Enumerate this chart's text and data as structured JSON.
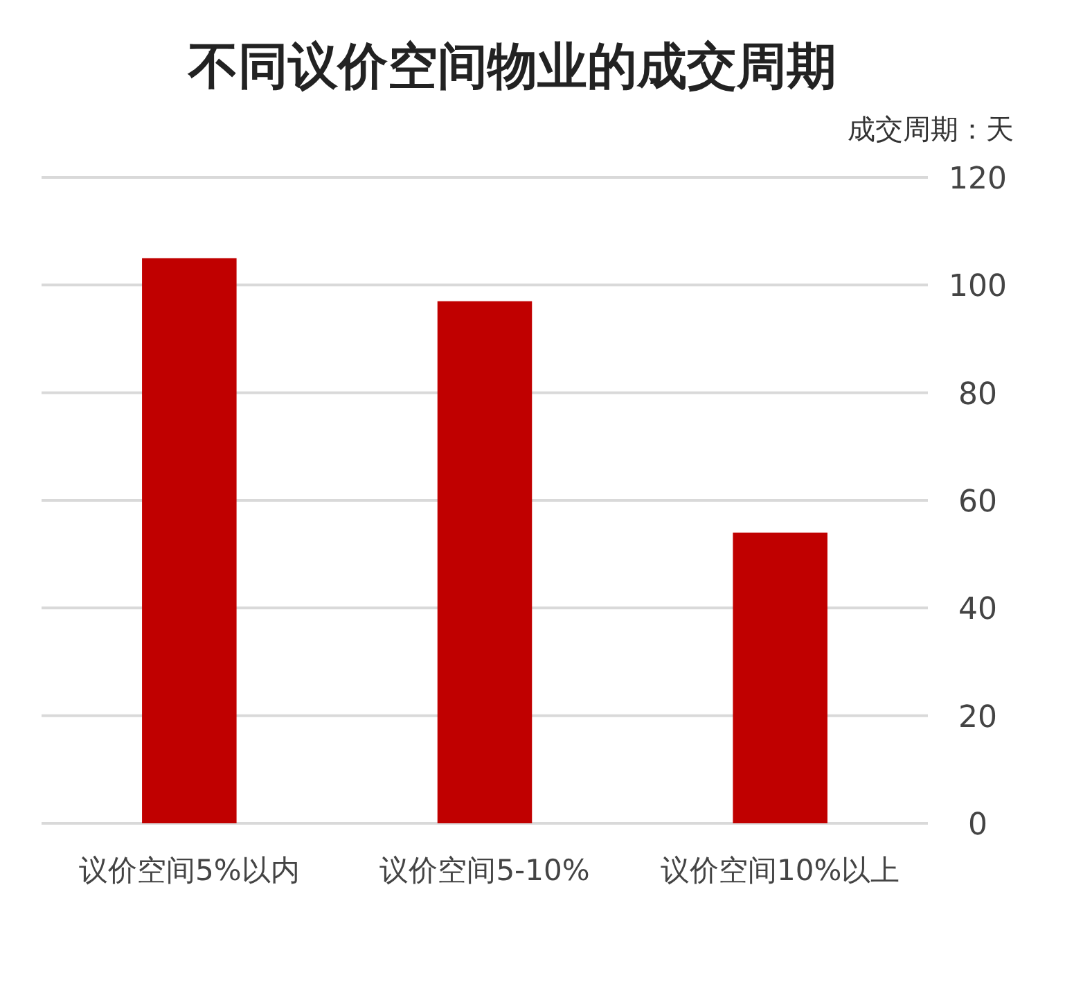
{
  "chart_data": {
    "type": "bar",
    "title": "不同议价空间物业的成交周期",
    "ylabel": "成交周期：天",
    "categories": [
      "议价空间5%以内",
      "议价空间5-10%",
      "议价空间10%以上"
    ],
    "values": [
      105,
      97,
      54
    ],
    "color": "#c00000",
    "ylim": [
      0,
      120
    ],
    "yticks": [
      0,
      20,
      40,
      60,
      80,
      100,
      120
    ],
    "grid": "y"
  }
}
